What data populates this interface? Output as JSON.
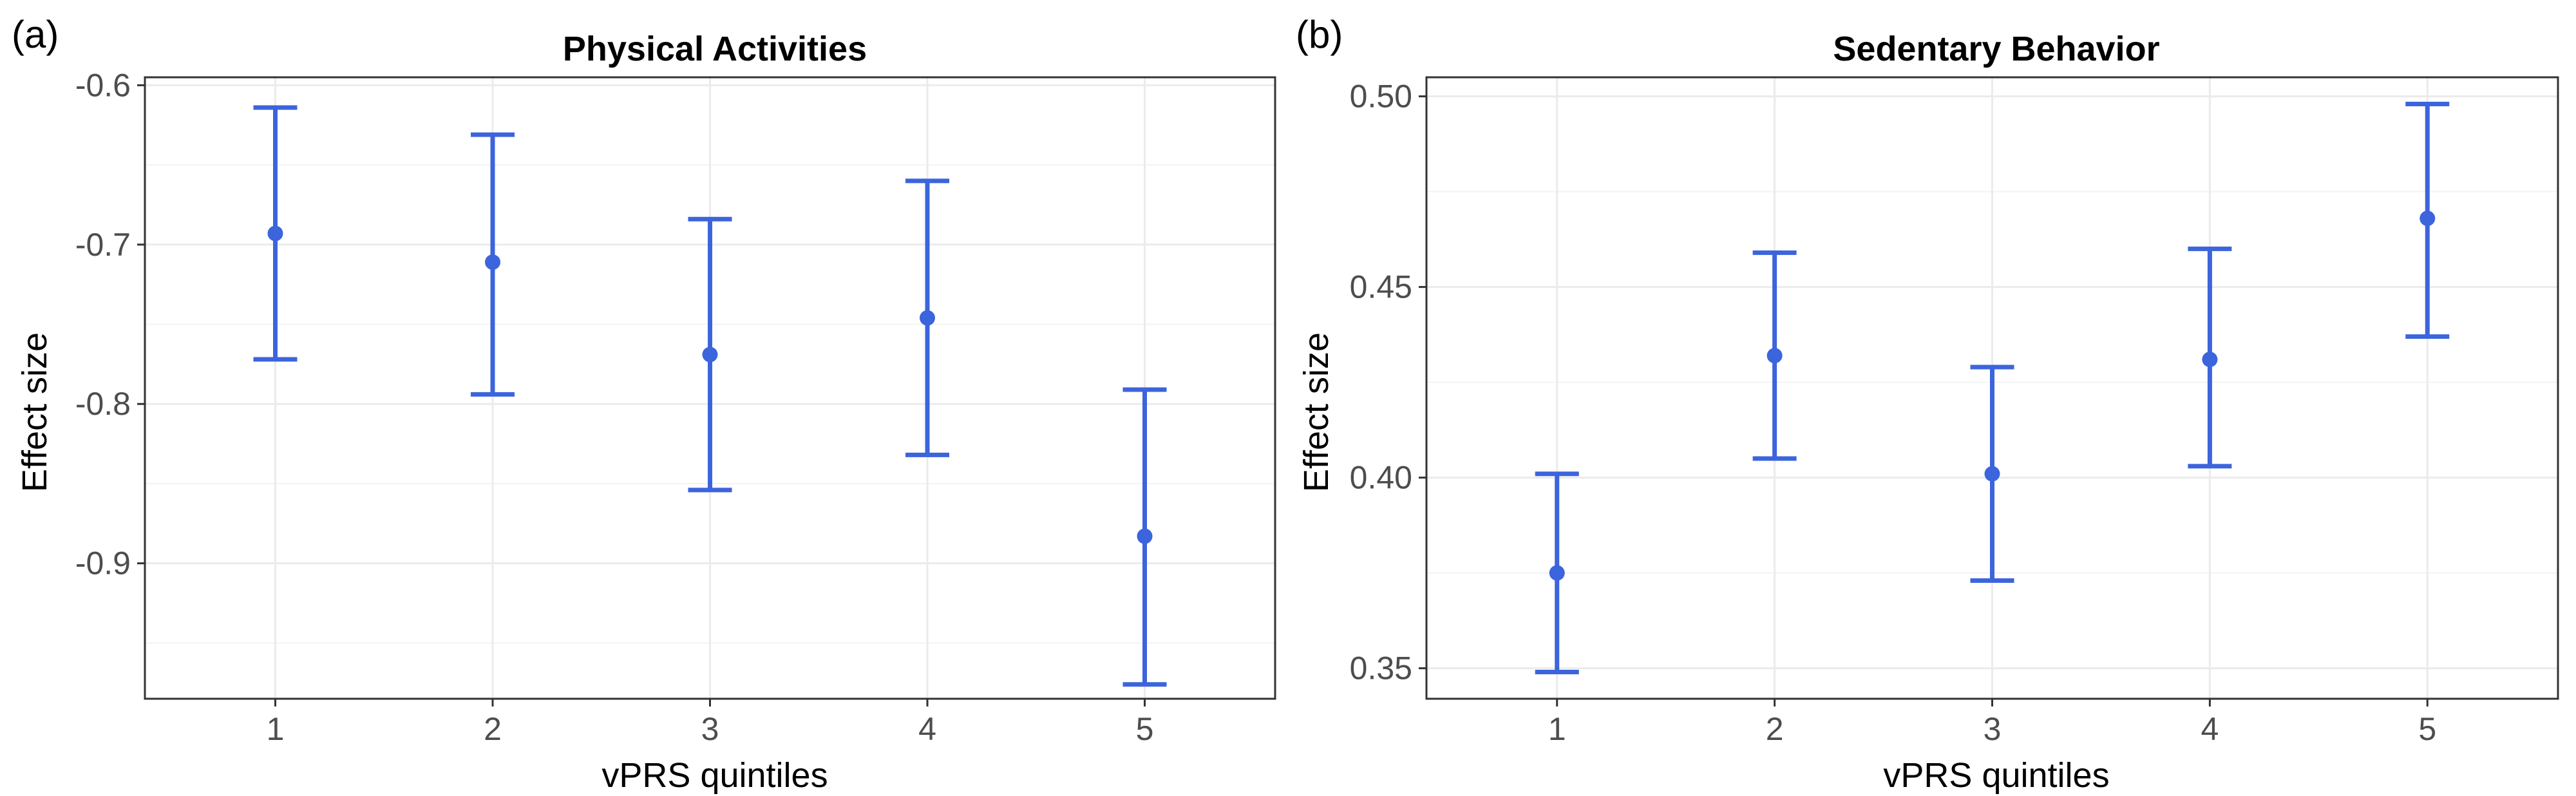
{
  "chart_data": [
    {
      "type": "errorbar",
      "panel_label": "(a)",
      "title": "Physical Activities",
      "xlabel": "vPRS quintiles",
      "ylabel": "Effect size",
      "categories": [
        "1",
        "2",
        "3",
        "4",
        "5"
      ],
      "x_ticks": [
        "1",
        "2",
        "3",
        "4",
        "5"
      ],
      "y_ticks": [
        -0.6,
        -0.7,
        -0.8,
        -0.9
      ],
      "y_tick_labels": [
        "-0.6",
        "-0.7",
        "-0.8",
        "-0.9"
      ],
      "ylim": [
        -0.985,
        -0.595
      ],
      "series": [
        {
          "values": [
            -0.693,
            -0.711,
            -0.769,
            -0.746,
            -0.883
          ],
          "lower": [
            -0.772,
            -0.794,
            -0.854,
            -0.832,
            -0.976
          ],
          "upper": [
            -0.614,
            -0.631,
            -0.684,
            -0.66,
            -0.791
          ],
          "color": "#3c64dc"
        }
      ],
      "grid": true
    },
    {
      "type": "errorbar",
      "panel_label": "(b)",
      "title": "Sedentary Behavior",
      "xlabel": "vPRS quintiles",
      "ylabel": "Effect size",
      "categories": [
        "1",
        "2",
        "3",
        "4",
        "5"
      ],
      "x_ticks": [
        "1",
        "2",
        "3",
        "4",
        "5"
      ],
      "y_ticks": [
        0.35,
        0.4,
        0.45,
        0.5
      ],
      "y_tick_labels": [
        "0.35",
        "0.40",
        "0.45",
        "0.50"
      ],
      "ylim": [
        0.342,
        0.505
      ],
      "series": [
        {
          "values": [
            0.375,
            0.432,
            0.401,
            0.431,
            0.468
          ],
          "lower": [
            0.349,
            0.405,
            0.373,
            0.403,
            0.437
          ],
          "upper": [
            0.401,
            0.459,
            0.429,
            0.46,
            0.498
          ],
          "color": "#3c64dc"
        }
      ],
      "grid": true
    }
  ]
}
